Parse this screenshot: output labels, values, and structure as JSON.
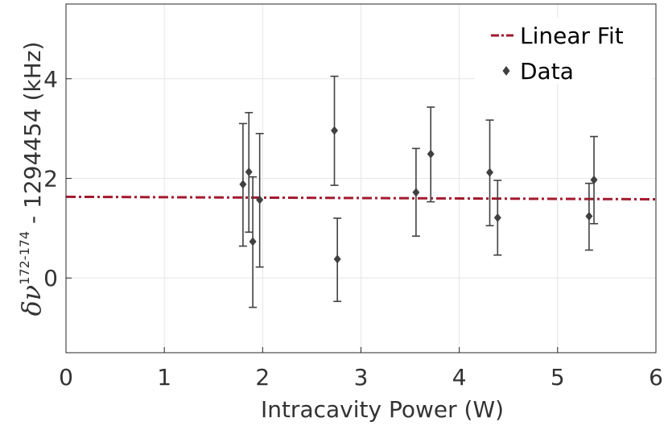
{
  "chart_data": {
    "type": "scatter",
    "title": "",
    "xlabel": "Intracavity Power (W)",
    "ylabel": {
      "symbol": "δν",
      "superscript": "172-174",
      "suffix": " - 1294454 (kHz)"
    },
    "xlim": [
      0,
      6
    ],
    "ylim": [
      -1.5,
      5.5
    ],
    "xticks": [
      0,
      1,
      2,
      3,
      4,
      5,
      6
    ],
    "yticks": [
      0,
      2,
      4
    ],
    "grid": true,
    "legend_position": "top-right",
    "series": [
      {
        "name": "Data",
        "kind": "points-with-errorbars",
        "marker": "diamond",
        "color": "#404040",
        "points": [
          {
            "x": 1.8,
            "y": 1.88,
            "err_low": 0.64,
            "err_high": 3.1
          },
          {
            "x": 1.86,
            "y": 2.13,
            "err_low": 0.92,
            "err_high": 3.32
          },
          {
            "x": 1.9,
            "y": 0.73,
            "err_low": -0.59,
            "err_high": 2.03
          },
          {
            "x": 1.97,
            "y": 1.57,
            "err_low": 0.22,
            "err_high": 2.9
          },
          {
            "x": 2.73,
            "y": 2.96,
            "err_low": 1.86,
            "err_high": 4.05
          },
          {
            "x": 2.76,
            "y": 0.38,
            "err_low": -0.47,
            "err_high": 1.2
          },
          {
            "x": 3.56,
            "y": 1.72,
            "err_low": 0.84,
            "err_high": 2.6
          },
          {
            "x": 3.71,
            "y": 2.49,
            "err_low": 1.53,
            "err_high": 3.43
          },
          {
            "x": 4.31,
            "y": 2.12,
            "err_low": 1.05,
            "err_high": 3.17
          },
          {
            "x": 4.39,
            "y": 1.21,
            "err_low": 0.46,
            "err_high": 1.96
          },
          {
            "x": 5.32,
            "y": 1.24,
            "err_low": 0.56,
            "err_high": 1.9
          },
          {
            "x": 5.37,
            "y": 1.97,
            "err_low": 1.09,
            "err_high": 2.84
          }
        ]
      },
      {
        "name": "Linear Fit",
        "kind": "line",
        "style": "dash-dot",
        "color": "#a31a2e",
        "x": [
          0,
          6
        ],
        "y": [
          1.63,
          1.58
        ]
      }
    ]
  }
}
